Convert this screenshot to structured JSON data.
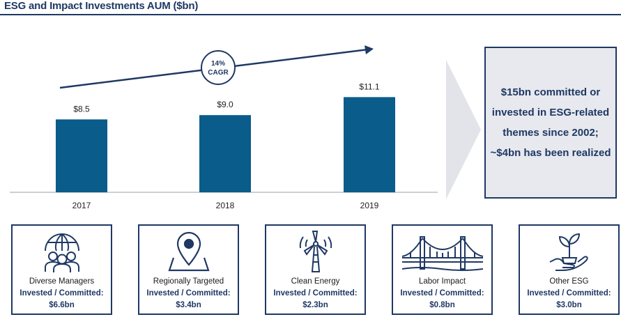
{
  "title": "ESG and Impact Investments AUM ($bn)",
  "chart_data": {
    "type": "bar",
    "title": "ESG and Impact Investments AUM ($bn)",
    "categories": [
      "2017",
      "2018",
      "2019"
    ],
    "values": [
      8.5,
      9.0,
      11.1
    ],
    "value_labels": [
      "$8.5",
      "$9.0",
      "$11.1"
    ],
    "ylim": [
      0,
      13
    ],
    "bar_color": "#0a5c8a",
    "annotation": {
      "line1": "14%",
      "line2": "CAGR"
    }
  },
  "callout": {
    "text": "$15bn committed or invested in ESG-related themes since 2002; ~$4bn has been realized"
  },
  "cards": [
    {
      "name": "Diverse Managers",
      "line": "Invested / Committed:",
      "value": "$6.6bn",
      "icon": "people-globe-icon"
    },
    {
      "name": "Regionally Targeted",
      "line": "Invested / Committed:",
      "value": "$3.4bn",
      "icon": "map-pin-icon"
    },
    {
      "name": "Clean Energy",
      "line": "Invested / Committed:",
      "value": "$2.3bn",
      "icon": "wind-turbine-icon"
    },
    {
      "name": "Labor Impact",
      "line": "Invested / Committed:",
      "value": "$0.8bn",
      "icon": "bridge-icon"
    },
    {
      "name": "Other ESG",
      "line": "Invested / Committed:",
      "value": "$3.0bn",
      "icon": "hand-plant-icon"
    }
  ],
  "colors": {
    "navy": "#1f3864",
    "bar": "#0a5c8a",
    "callout_bg": "#e7e9ee",
    "chevron": "#e2e4e9"
  }
}
